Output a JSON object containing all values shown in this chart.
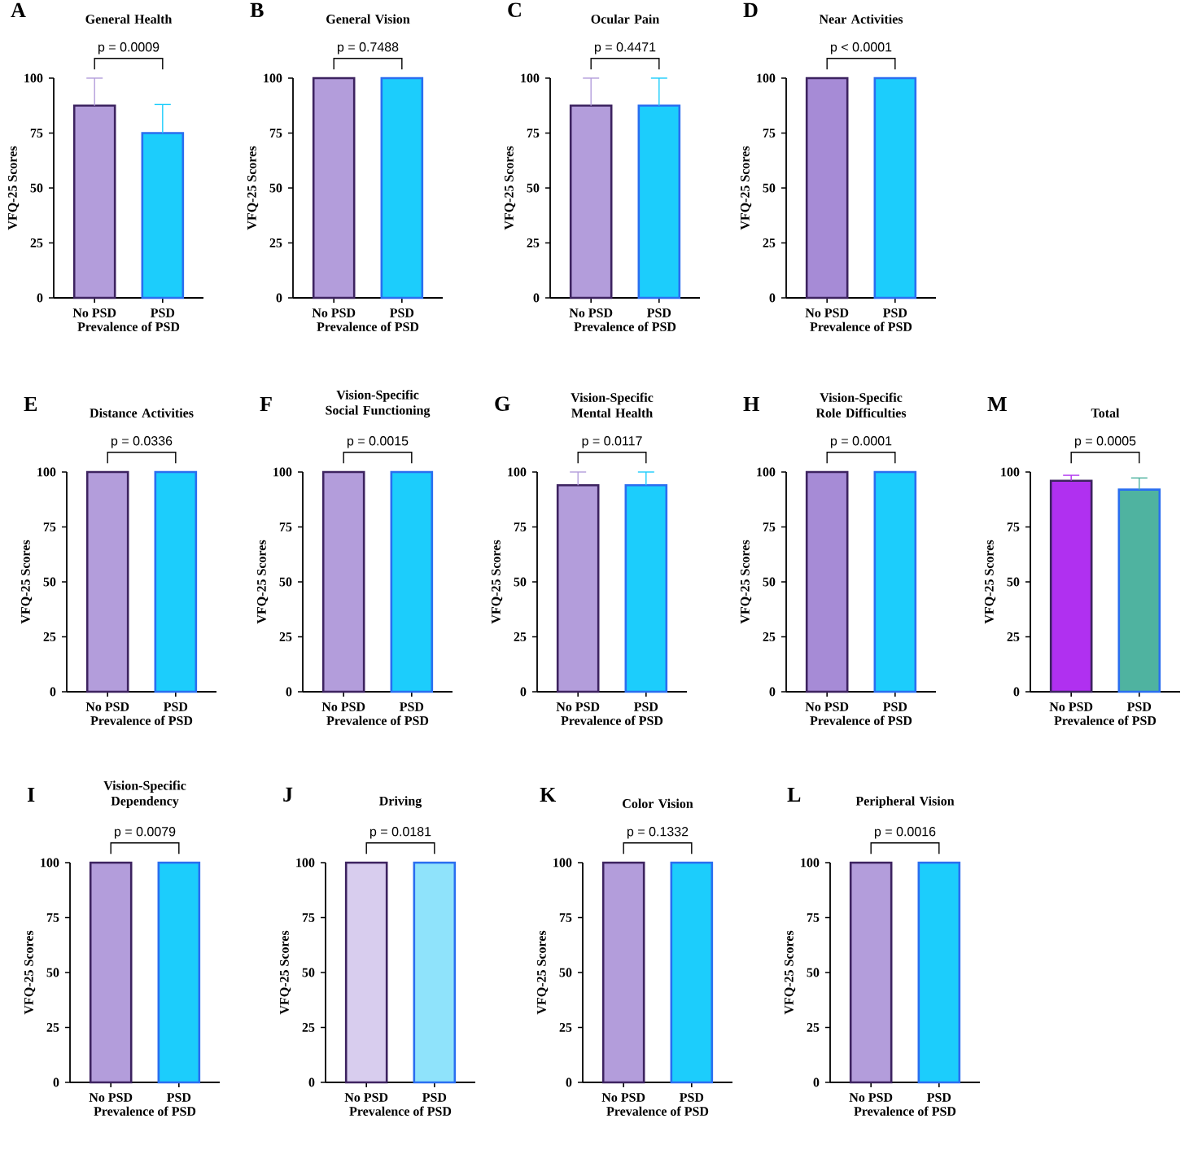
{
  "chart_data": [
    {
      "type": "bar",
      "title": "General Health",
      "xlabel": "Prevalence of PSD",
      "ylabel": "VFQ-25 Scores",
      "categories": [
        "No PSD",
        "PSD"
      ],
      "values": [
        87.5,
        75
      ],
      "colors": [
        "#b39ddb",
        "#1ccdfc"
      ],
      "errors": [
        [
          87.5,
          100
        ],
        [
          75,
          88
        ]
      ],
      "ylim": [
        0,
        100
      ],
      "yticks": [
        0,
        25,
        50,
        75,
        100
      ],
      "annotations": [
        "A",
        "p = 0.0009"
      ]
    },
    {
      "type": "bar",
      "title": "General Vision",
      "xlabel": "Prevalence of PSD",
      "ylabel": "VFQ-25 Scores",
      "categories": [
        "No PSD",
        "PSD"
      ],
      "values": [
        100,
        100
      ],
      "colors": [
        "#b39ddb",
        "#1ccdfc"
      ],
      "ylim": [
        0,
        100
      ],
      "yticks": [
        0,
        25,
        50,
        75,
        100
      ],
      "annotations": [
        "B",
        "p = 0.7488"
      ]
    },
    {
      "type": "bar",
      "title": "Ocular  Pain",
      "xlabel": "Prevalence of PSD",
      "ylabel": "VFQ-25 Scores",
      "categories": [
        "No PSD",
        "PSD"
      ],
      "values": [
        87.5,
        87.5
      ],
      "colors": [
        "#b39ddb",
        "#1ccdfc"
      ],
      "errors": [
        [
          87.5,
          100
        ],
        [
          87.5,
          100
        ]
      ],
      "ylim": [
        0,
        100
      ],
      "yticks": [
        0,
        25,
        50,
        75,
        100
      ],
      "annotations": [
        "C",
        "p = 0.4471"
      ]
    },
    {
      "type": "bar",
      "title": "Near Activities",
      "xlabel": "Prevalence of PSD",
      "ylabel": "VFQ-25 Scores",
      "categories": [
        "No PSD",
        "PSD"
      ],
      "values": [
        100,
        100
      ],
      "colors": [
        "#a68bd6",
        "#1ccdfc"
      ],
      "ylim": [
        0,
        100
      ],
      "yticks": [
        0,
        25,
        50,
        75,
        100
      ],
      "annotations": [
        "D",
        "p < 0.0001"
      ]
    },
    {
      "type": "bar",
      "title": "Distance Activities",
      "xlabel": "Prevalence of PSD",
      "ylabel": "VFQ-25 Scores",
      "categories": [
        "No PSD",
        "PSD"
      ],
      "values": [
        100,
        100
      ],
      "colors": [
        "#b39ddb",
        "#1ccdfc"
      ],
      "ylim": [
        0,
        100
      ],
      "yticks": [
        0,
        25,
        50,
        75,
        100
      ],
      "annotations": [
        "E",
        "p = 0.0336"
      ]
    },
    {
      "type": "bar",
      "title": "Vision-Specific Social Functioning",
      "xlabel": "Prevalence of PSD",
      "ylabel": "VFQ-25 Scores",
      "categories": [
        "No PSD",
        "PSD"
      ],
      "values": [
        100,
        100
      ],
      "colors": [
        "#b39ddb",
        "#1ccdfc"
      ],
      "ylim": [
        0,
        100
      ],
      "yticks": [
        0,
        25,
        50,
        75,
        100
      ],
      "annotations": [
        "F",
        "p = 0.0015"
      ]
    },
    {
      "type": "bar",
      "title": "Vision-Specific Mental Health",
      "xlabel": "Prevalence of PSD",
      "ylabel": "VFQ-25 Scores",
      "categories": [
        "No PSD",
        "PSD"
      ],
      "values": [
        94,
        94
      ],
      "colors": [
        "#b39ddb",
        "#1ccdfc"
      ],
      "errors": [
        [
          94,
          100
        ],
        [
          94,
          100
        ]
      ],
      "ylim": [
        0,
        100
      ],
      "yticks": [
        0,
        25,
        50,
        75,
        100
      ],
      "annotations": [
        "G",
        "p = 0.0117"
      ]
    },
    {
      "type": "bar",
      "title": "Vision-Specific Role Difficulties",
      "xlabel": "Prevalence of PSD",
      "ylabel": "VFQ-25 Scores",
      "categories": [
        "No PSD",
        "PSD"
      ],
      "values": [
        100,
        100
      ],
      "colors": [
        "#a68bd6",
        "#1ccdfc"
      ],
      "ylim": [
        0,
        100
      ],
      "yticks": [
        0,
        25,
        50,
        75,
        100
      ],
      "annotations": [
        "H",
        "p = 0.0001"
      ]
    },
    {
      "type": "bar",
      "title": "Total",
      "xlabel": "Prevalence of PSD",
      "ylabel": "VFQ-25 Scores",
      "categories": [
        "No PSD",
        "PSD"
      ],
      "values": [
        96,
        92
      ],
      "colors": [
        "#b030f0",
        "#4fb3a0"
      ],
      "errors": [
        [
          96,
          98.5
        ],
        [
          92,
          97.3
        ]
      ],
      "ylim": [
        0,
        100
      ],
      "yticks": [
        0,
        25,
        50,
        75,
        100
      ],
      "annotations": [
        "M",
        "p = 0.0005"
      ]
    },
    {
      "type": "bar",
      "title": "Vision-Specific Dependency",
      "xlabel": "Prevalence of PSD",
      "ylabel": "VFQ-25 Scores",
      "categories": [
        "No PSD",
        "PSD"
      ],
      "values": [
        100,
        100
      ],
      "colors": [
        "#b39ddb",
        "#1ccdfc"
      ],
      "ylim": [
        0,
        100
      ],
      "yticks": [
        0,
        25,
        50,
        75,
        100
      ],
      "annotations": [
        "I",
        "p = 0.0079"
      ]
    },
    {
      "type": "bar",
      "title": "Driving",
      "xlabel": "Prevalence of PSD",
      "ylabel": "VFQ-25 Scores",
      "categories": [
        "No PSD",
        "PSD"
      ],
      "values": [
        100,
        100
      ],
      "colors": [
        "#d8cdee",
        "#8fe3fb"
      ],
      "ylim": [
        0,
        100
      ],
      "yticks": [
        0,
        25,
        50,
        75,
        100
      ],
      "annotations": [
        "J",
        "p = 0.0181"
      ]
    },
    {
      "type": "bar",
      "title": "Color Vision",
      "xlabel": "Prevalence of PSD",
      "ylabel": "VFQ-25 Scores",
      "categories": [
        "No PSD",
        "PSD"
      ],
      "values": [
        100,
        100
      ],
      "colors": [
        "#b39ddb",
        "#1ccdfc"
      ],
      "ylim": [
        0,
        100
      ],
      "yticks": [
        0,
        25,
        50,
        75,
        100
      ],
      "annotations": [
        "K",
        "p = 0.1332"
      ]
    },
    {
      "type": "bar",
      "title": "Peripheral Vision",
      "xlabel": "Prevalence of PSD",
      "ylabel": "VFQ-25 Scores",
      "categories": [
        "No PSD",
        "PSD"
      ],
      "values": [
        100,
        100
      ],
      "colors": [
        "#b39ddb",
        "#1ccdfc"
      ],
      "ylim": [
        0,
        100
      ],
      "yticks": [
        0,
        25,
        50,
        75,
        100
      ],
      "annotations": [
        "L",
        "p = 0.0016"
      ]
    }
  ]
}
